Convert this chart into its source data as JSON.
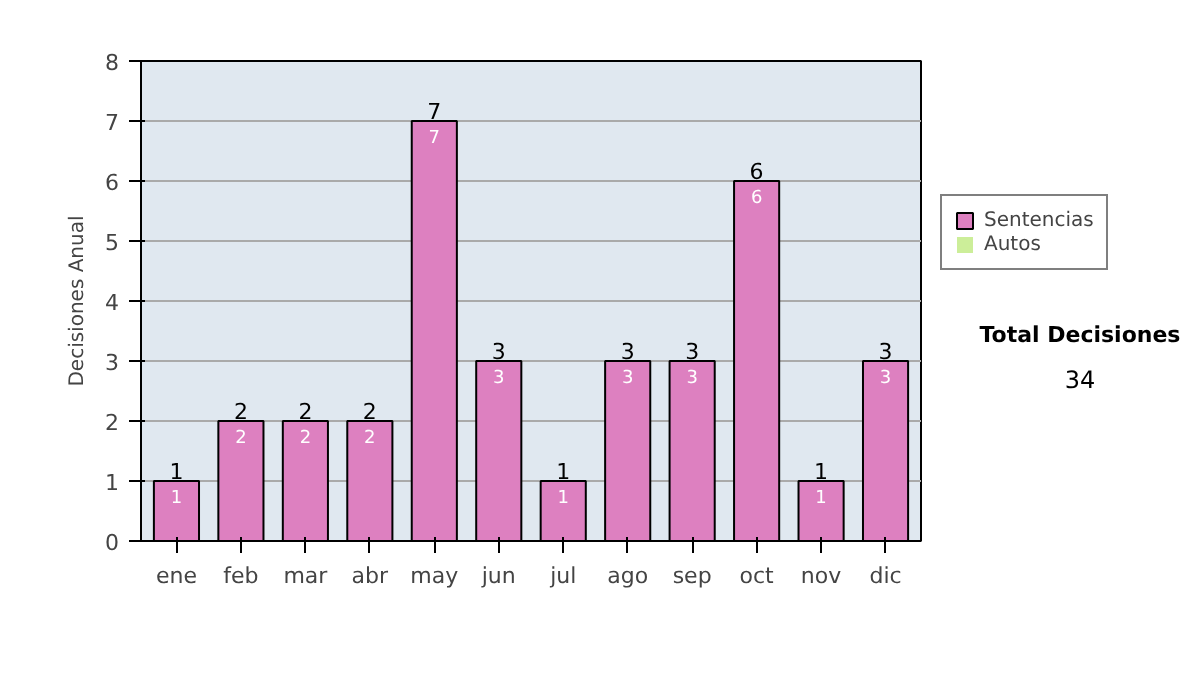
{
  "chart_data": {
    "type": "bar",
    "stacked": true,
    "ylabel": "Decisiones Anual",
    "categories": [
      "ene",
      "feb",
      "mar",
      "abr",
      "may",
      "jun",
      "jul",
      "ago",
      "sep",
      "oct",
      "nov",
      "dic"
    ],
    "series": [
      {
        "name": "Sentencias",
        "color": "#dd80c0",
        "values": [
          1,
          2,
          2,
          2,
          7,
          3,
          1,
          3,
          3,
          6,
          1,
          3
        ],
        "value_labels": [
          "1",
          "2",
          "2",
          "2",
          "7",
          "3",
          "1",
          "3",
          "3",
          "6",
          "1",
          "3"
        ]
      },
      {
        "name": "Autos",
        "color": "#ccee99",
        "values": [
          0,
          0,
          0,
          0,
          0,
          0,
          0,
          0,
          0,
          0,
          0,
          0
        ]
      }
    ],
    "totals": [
      "1",
      "2",
      "2",
      "2",
      "7",
      "3",
      "1",
      "3",
      "3",
      "6",
      "1",
      "3"
    ],
    "ylim": [
      0,
      8
    ],
    "yticks": [
      0,
      1,
      2,
      3,
      4,
      5,
      6,
      7,
      8
    ],
    "grid": "y",
    "legend": "right",
    "annotations": [
      "Total Decisiones",
      "34"
    ]
  }
}
